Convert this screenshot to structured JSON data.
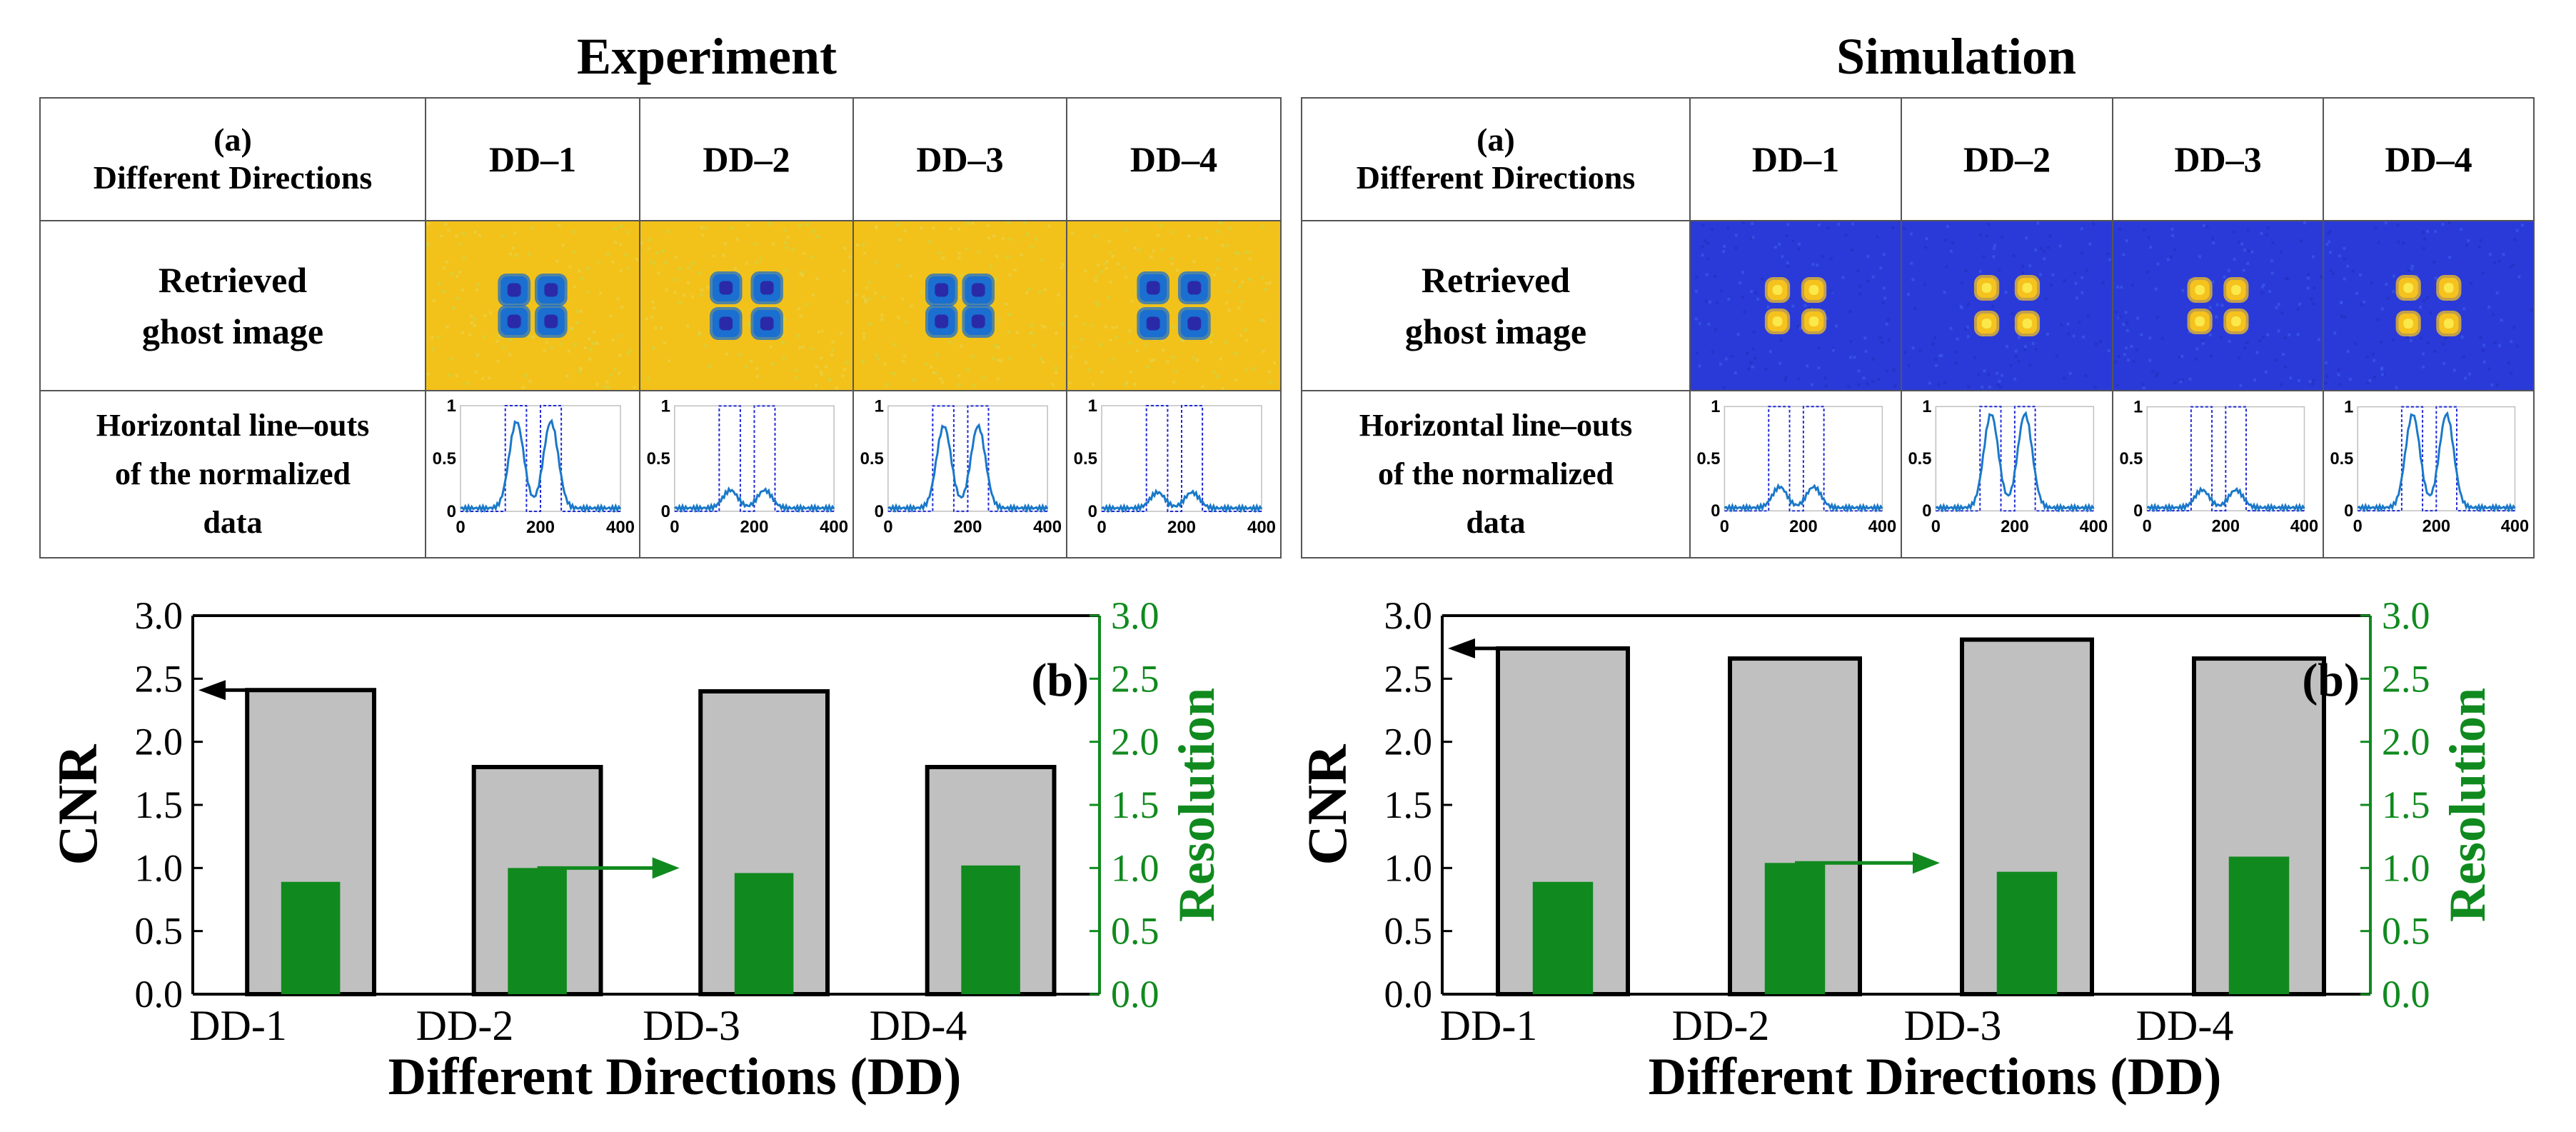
{
  "panels": [
    {
      "title": "Experiment",
      "table": {
        "corner_tag": "(a)",
        "corner_label": "Different Directions",
        "columns": [
          "DD–1",
          "DD–2",
          "DD–3",
          "DD–4"
        ],
        "row_ghost_label": [
          "Retrieved",
          "ghost image"
        ],
        "row_lineout_label": [
          "Horizontal line–outs",
          "of the normalized",
          "data"
        ],
        "lineout_yticks": [
          "0",
          "0.5",
          "1"
        ],
        "lineout_xticks": [
          "0",
          "200",
          "400"
        ],
        "ghost_colormap": "yellow-background",
        "ghost_colors": {
          "bg": "#f2c21a",
          "spot": "#1a6fd0",
          "core": "#2a2aa8"
        },
        "lineout_peaks": [
          0.82,
          0.17,
          0.78,
          0.15
        ]
      },
      "chart_data": {
        "type": "bar",
        "label": "(b)",
        "categories": [
          "DD-1",
          "DD-2",
          "DD-3",
          "DD-4"
        ],
        "series": [
          {
            "name": "CNR",
            "values": [
              2.41,
              1.8,
              2.4,
              1.8
            ],
            "color": "#c0c0c0"
          },
          {
            "name": "Resolution",
            "values": [
              0.89,
              1.0,
              0.96,
              1.02
            ],
            "color": "#108a1e"
          }
        ],
        "xlabel": "Different Directions (DD)",
        "ylabel_left": "CNR",
        "ylabel_right": "Resolution",
        "ylim": [
          0,
          3.0
        ],
        "yticks": [
          "0.0",
          "0.5",
          "1.0",
          "1.5",
          "2.0",
          "2.5",
          "3.0"
        ],
        "left_axis_color": "#000000",
        "right_axis_color": "#108a1e",
        "arrow_left_value": 2.41,
        "arrow_right_value": 1.0
      }
    },
    {
      "title": "Simulation",
      "table": {
        "corner_tag": "(a)",
        "corner_label": "Different Directions",
        "columns": [
          "DD–1",
          "DD–2",
          "DD–3",
          "DD–4"
        ],
        "row_ghost_label": [
          "Retrieved",
          "ghost image"
        ],
        "row_lineout_label": [
          "Horizontal line–outs",
          "of the normalized",
          "data"
        ],
        "lineout_yticks": [
          "0",
          "0.5",
          "1"
        ],
        "lineout_xticks": [
          "0",
          "200",
          "400"
        ],
        "ghost_colormap": "blue-background",
        "ghost_colors": {
          "bg": "#2a3ad8",
          "spot": "#f5c21e",
          "core": "#fbe84a"
        },
        "lineout_peaks": [
          0.2,
          0.9,
          0.17,
          0.9
        ]
      },
      "chart_data": {
        "type": "bar",
        "label": "(b)",
        "categories": [
          "DD-1",
          "DD-2",
          "DD-3",
          "DD-4"
        ],
        "series": [
          {
            "name": "CNR",
            "values": [
              2.74,
              2.66,
              2.81,
              2.66
            ],
            "color": "#c0c0c0"
          },
          {
            "name": "Resolution",
            "values": [
              0.89,
              1.04,
              0.97,
              1.09
            ],
            "color": "#108a1e"
          }
        ],
        "xlabel": "Different Directions (DD)",
        "ylabel_left": "CNR",
        "ylabel_right": "Resolution",
        "ylim": [
          0,
          3.0
        ],
        "yticks": [
          "0.0",
          "0.5",
          "1.0",
          "1.5",
          "2.0",
          "2.5",
          "3.0"
        ],
        "left_axis_color": "#000000",
        "right_axis_color": "#108a1e",
        "arrow_left_value": 2.74,
        "arrow_right_value": 1.04
      }
    }
  ]
}
